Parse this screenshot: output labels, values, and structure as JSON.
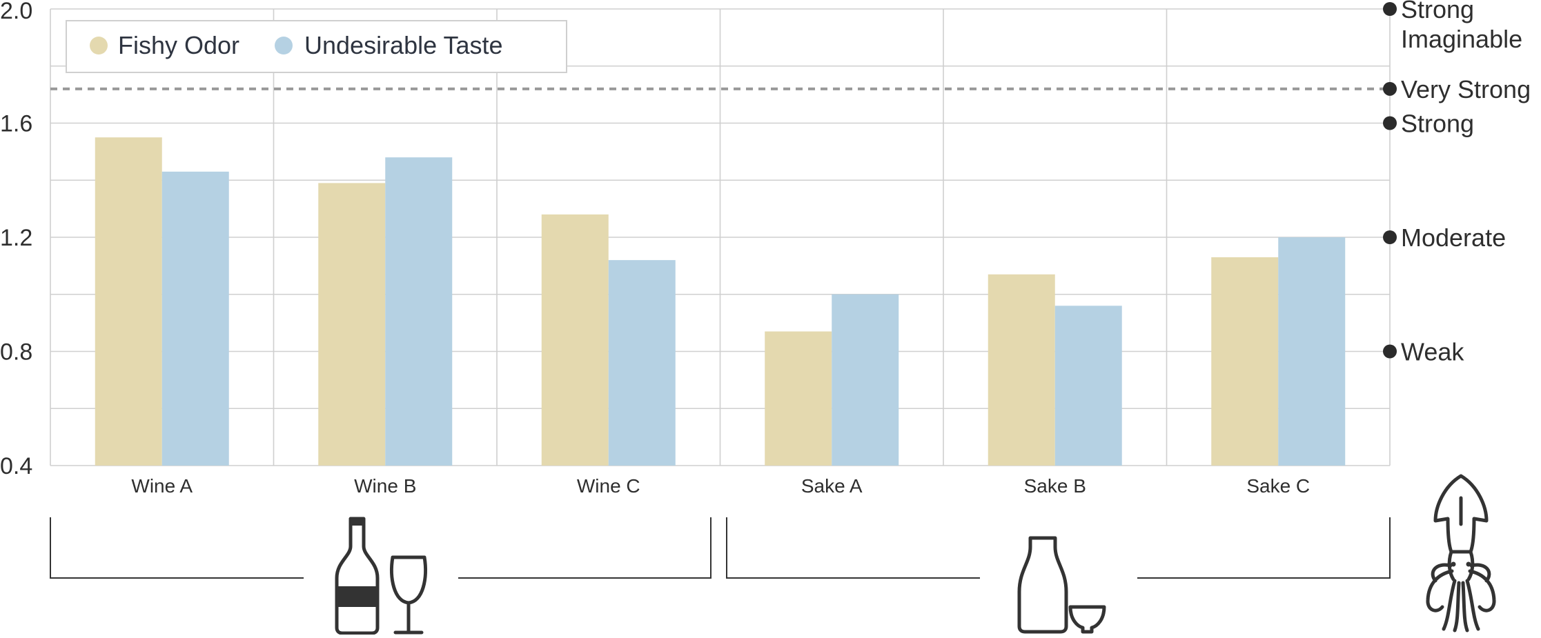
{
  "chart_data": {
    "type": "bar",
    "categories": [
      "Wine A",
      "Wine B",
      "Wine C",
      "Sake A",
      "Sake B",
      "Sake C"
    ],
    "series": [
      {
        "name": "Fishy Odor",
        "values": [
          1.55,
          1.39,
          1.28,
          0.87,
          1.07,
          1.13
        ]
      },
      {
        "name": "Undesirable Taste",
        "values": [
          1.43,
          1.48,
          1.12,
          1.0,
          0.96,
          1.2
        ]
      }
    ],
    "ylim": [
      0.4,
      2.0
    ],
    "yticks": [
      "0.4",
      "0.8",
      "1.2",
      "1.6",
      "2.0"
    ],
    "yticks_values": [
      0.4,
      0.8,
      1.2,
      1.6,
      2.0
    ],
    "reference_line": {
      "value": 1.72,
      "style": "dashed"
    },
    "intensity_labels": [
      {
        "value": 2.0,
        "lines": [
          "Strong",
          "Imaginable"
        ]
      },
      {
        "value": 1.72,
        "lines": [
          "Very Strong"
        ]
      },
      {
        "value": 1.6,
        "lines": [
          "Strong"
        ]
      },
      {
        "value": 1.2,
        "lines": [
          "Moderate"
        ]
      },
      {
        "value": 0.8,
        "lines": [
          "Weak"
        ]
      }
    ],
    "groups": [
      {
        "icon": "wine-bottle-and-glass-icon"
      },
      {
        "icon": "sake-flask-and-cup-icon"
      }
    ],
    "side_icon": "squid-icon",
    "legend_position": "top-left",
    "grid": true,
    "colors": {
      "Fishy Odor": "#e4d9af",
      "Undesirable Taste": "#b5d1e3",
      "marker": "#2b2b2b",
      "reference": "#999999"
    }
  }
}
